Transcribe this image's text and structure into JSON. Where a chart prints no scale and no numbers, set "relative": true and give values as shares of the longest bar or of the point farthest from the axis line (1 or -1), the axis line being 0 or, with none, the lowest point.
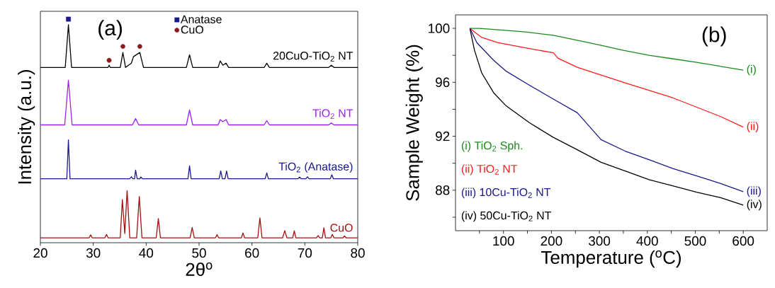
{
  "chart_data": [
    {
      "type": "line",
      "relative": true,
      "xlabel": "2θ$^{o}$",
      "ylabel": "Intensity (a.u.)",
      "xlim": [
        20,
        80
      ],
      "xticks": [
        20,
        30,
        40,
        50,
        60,
        70,
        80
      ],
      "legend": "top",
      "annotations": [
        "(a)"
      ],
      "series": [
        {
          "name": "20CuO-TiO$_{2}$ NT",
          "color": "#000000",
          "x": [
            20,
            24.7,
            25.3,
            25.9,
            32.8,
            33,
            33.2,
            35.1,
            35.6,
            36.1,
            37.2,
            37.6,
            38.8,
            39.5,
            47.6,
            48.2,
            48.8,
            53.6,
            54,
            54.5,
            55.1,
            55.6,
            62.3,
            62.8,
            63.3,
            74.5,
            75,
            75.5,
            80
          ],
          "values": [
            0.784,
            0.784,
            0.975,
            0.784,
            0.784,
            0.794,
            0.784,
            0.784,
            0.851,
            0.784,
            0.803,
            0.832,
            0.851,
            0.784,
            0.784,
            0.841,
            0.784,
            0.784,
            0.813,
            0.794,
            0.803,
            0.784,
            0.784,
            0.803,
            0.784,
            0.784,
            0.794,
            0.784,
            0.784
          ]
        },
        {
          "name": "TiO$_{2}$ NT",
          "color": "#a020f0",
          "x": [
            20,
            24.6,
            25.3,
            26.0,
            37.4,
            38,
            38.6,
            47.6,
            48.2,
            48.8,
            53.6,
            54,
            54.5,
            55.1,
            55.6,
            62.3,
            62.8,
            63.3,
            74.5,
            75,
            75.5,
            80
          ],
          "values": [
            0.527,
            0.527,
            0.727,
            0.527,
            0.527,
            0.555,
            0.527,
            0.527,
            0.594,
            0.527,
            0.527,
            0.551,
            0.541,
            0.551,
            0.527,
            0.527,
            0.546,
            0.527,
            0.527,
            0.536,
            0.527,
            0.527
          ]
        },
        {
          "name": "TiO$_{2}$ (Anatase)",
          "color": "#1a1a8c",
          "x": [
            20,
            25.0,
            25.3,
            25.6,
            36.9,
            37.2,
            37.5,
            37.8,
            38,
            38.3,
            38.8,
            39,
            39.3,
            47.9,
            48.2,
            48.5,
            53.8,
            54.1,
            54.4,
            54.9,
            55.2,
            55.5,
            62.5,
            62.8,
            63.1,
            68.7,
            69,
            69.3,
            70.2,
            70.5,
            70.8,
            74.8,
            75.1,
            75.4,
            80
          ],
          "values": [
            0.286,
            0.286,
            0.46,
            0.286,
            0.286,
            0.295,
            0.286,
            0.286,
            0.325,
            0.286,
            0.286,
            0.294,
            0.286,
            0.286,
            0.344,
            0.286,
            0.286,
            0.321,
            0.286,
            0.286,
            0.321,
            0.286,
            0.286,
            0.312,
            0.286,
            0.286,
            0.294,
            0.286,
            0.286,
            0.295,
            0.286,
            0.286,
            0.304,
            0.286,
            0.286
          ]
        },
        {
          "name": "CuO",
          "color": "#a01010",
          "x": [
            20,
            29.2,
            29.5,
            29.8,
            32.2,
            32.5,
            32.8,
            35.1,
            35.5,
            35.95,
            36.4,
            36.9,
            38.2,
            38.7,
            39.2,
            41.9,
            42.3,
            42.7,
            48.3,
            48.7,
            49.1,
            53.1,
            53.4,
            53.7,
            58,
            58.3,
            58.6,
            61.1,
            61.5,
            61.9,
            65.8,
            66.2,
            66.6,
            67.7,
            68,
            68.3,
            72.2,
            72.5,
            72.8,
            73.3,
            73.6,
            73.9,
            74.9,
            75.2,
            75.5,
            77.2,
            77.5,
            77.8,
            80
          ],
          "values": [
            0.022,
            0.022,
            0.035,
            0.022,
            0.022,
            0.037,
            0.022,
            0.022,
            0.193,
            0.041,
            0.233,
            0.022,
            0.022,
            0.207,
            0.022,
            0.022,
            0.108,
            0.022,
            0.022,
            0.068,
            0.022,
            0.022,
            0.036,
            0.022,
            0.022,
            0.044,
            0.022,
            0.022,
            0.111,
            0.022,
            0.022,
            0.054,
            0.022,
            0.022,
            0.053,
            0.022,
            0.022,
            0.032,
            0.022,
            0.022,
            0.067,
            0.022,
            0.022,
            0.037,
            0.022,
            0.022,
            0.03,
            0.022,
            0.022
          ]
        },
        {
          "name": "Anatase",
          "type": "scatter",
          "marker": "square",
          "color": "#1a1a8c",
          "x": [
            25.3
          ],
          "values": [
            1.0
          ]
        },
        {
          "name": "CuO",
          "type": "scatter",
          "marker": "circle",
          "color": "#8b1a1a",
          "x": [
            33,
            35.6,
            38.8
          ],
          "values": [
            0.816,
            0.878,
            0.878
          ]
        }
      ]
    },
    {
      "type": "line",
      "xlabel": "Temperature ($^{o}$C)",
      "ylabel": "Sample Weight (%)",
      "xlim": [
        0,
        650
      ],
      "ylim": [
        85,
        101
      ],
      "xticks": [
        {
          "value": 50,
          "label": null
        },
        100,
        {
          "value": 150,
          "label": null
        },
        200,
        {
          "value": 250,
          "label": null
        },
        300,
        {
          "value": 350,
          "label": null
        },
        400,
        {
          "value": 450,
          "label": null
        },
        500,
        {
          "value": 550,
          "label": null
        },
        600
      ],
      "yticks": [
        {
          "value": 86,
          "label": null
        },
        88,
        {
          "value": 90,
          "label": null
        },
        92,
        {
          "value": 94,
          "label": null
        },
        96,
        {
          "value": 98,
          "label": null
        },
        100
      ],
      "annotations": [
        "(b)",
        "(i) TiO$_{2}$ Sph.",
        "(ii) TiO$_{2}$ NT",
        "(iii) 10Cu-TiO$_{2}$ NT",
        "(iv) 50Cu-TiO$_{2}$ NT"
      ],
      "series": [
        {
          "name": "(i)",
          "color": "#1a8a1a",
          "x": [
            30,
            50,
            104.5,
            150,
            204,
            250,
            304,
            350,
            403.5,
            450,
            503,
            550,
            600
          ],
          "values": [
            100,
            100.0,
            99.85,
            99.72,
            99.48,
            99.15,
            98.74,
            98.37,
            98.0,
            97.76,
            97.48,
            97.2,
            96.9
          ]
        },
        {
          "name": "(ii)",
          "color": "#ff1a1a",
          "x": [
            30,
            42,
            54.6,
            89,
            154,
            204,
            214,
            254,
            353.7,
            453,
            553,
            600
          ],
          "values": [
            100,
            99.66,
            99.33,
            98.93,
            98.5,
            98.19,
            97.78,
            97.11,
            95.96,
            94.85,
            93.46,
            92.68
          ]
        },
        {
          "name": "(iii)",
          "color": "#1a1a8c",
          "x": [
            30,
            44.7,
            79.6,
            104.5,
            154.3,
            204,
            254,
            303.6,
            353.7,
            403.5,
            453,
            503,
            553,
            600
          ],
          "values": [
            100,
            98.93,
            97.63,
            96.85,
            95.78,
            94.76,
            93.74,
            91.75,
            90.9,
            90.26,
            89.61,
            89.06,
            88.5,
            87.89
          ]
        },
        {
          "name": "(iv)",
          "color": "#000000",
          "x": [
            30,
            39.6,
            54.6,
            79.6,
            104.5,
            154.3,
            204,
            254,
            303.6,
            353.7,
            403.5,
            453,
            503,
            553,
            600
          ],
          "values": [
            100,
            98.37,
            96.7,
            95.22,
            94.29,
            93.0,
            91.92,
            91.0,
            90.07,
            89.43,
            88.78,
            88.32,
            87.85,
            87.45,
            86.9
          ]
        }
      ]
    }
  ]
}
